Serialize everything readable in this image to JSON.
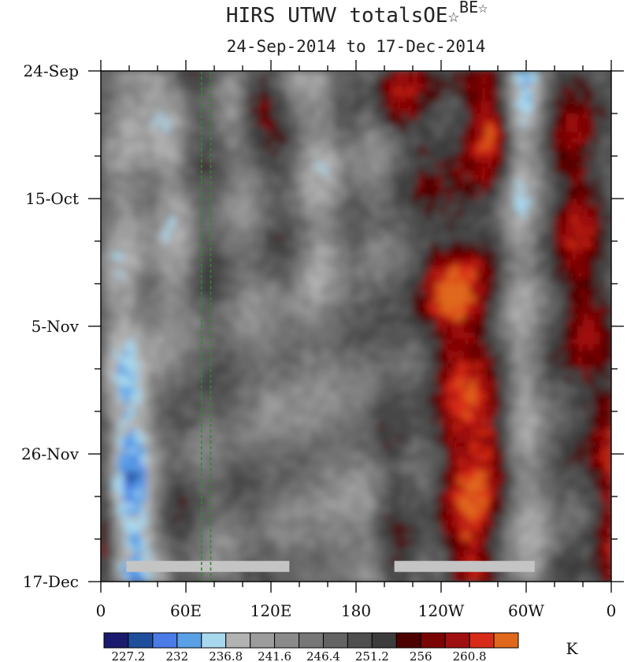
{
  "chart_data": {
    "type": "heatmap",
    "title": "HIRS UTWV totalsOE",
    "title_superscript": "BE",
    "subtitle": "24-Sep-2014 to 17-Dec-2014",
    "x_tick_labels": [
      "0",
      "60E",
      "120E",
      "180",
      "120W",
      "60W",
      "0"
    ],
    "x_ticks_deg_east": [
      0,
      60,
      120,
      180,
      240,
      300,
      360
    ],
    "y_tick_labels": [
      "24-Sep",
      "15-Oct",
      "5-Nov",
      "26-Nov",
      "17-Dec"
    ],
    "y_ticks_day_index": [
      0,
      21,
      42,
      63,
      84
    ],
    "xlim": [
      0,
      360
    ],
    "ylim_days": [
      0,
      84
    ],
    "colorbar": {
      "unit": "K",
      "levels": [
        227.2,
        229.6,
        232,
        234.4,
        236.8,
        239.2,
        241.6,
        244,
        246.4,
        248.8,
        251.2,
        253.6,
        256,
        258.4,
        260.8,
        263.2
      ],
      "labeled_levels": [
        "227.2",
        "232",
        "236.8",
        "241.6",
        "246.4",
        "251.2",
        "256",
        "260.8"
      ],
      "colors": [
        "#1a1a6e",
        "#1f4e9c",
        "#4a7be6",
        "#5aa0e6",
        "#a7d8ee",
        "#b2b2b2",
        "#9c9c9c",
        "#8a8a8a",
        "#777777",
        "#636363",
        "#4f4f4f",
        "#3c3c3c",
        "#4c0000",
        "#7a0404",
        "#a01010",
        "#d82a18",
        "#e0681c"
      ]
    },
    "reference_longitudes_deg_east": [
      71,
      77.5
    ],
    "missing_data_bars": [
      {
        "from_deg_east": 18,
        "to_deg_east": 133,
        "day": 81.5
      },
      {
        "from_deg_east": 207,
        "to_deg_east": 306,
        "day": 81.5
      }
    ]
  }
}
